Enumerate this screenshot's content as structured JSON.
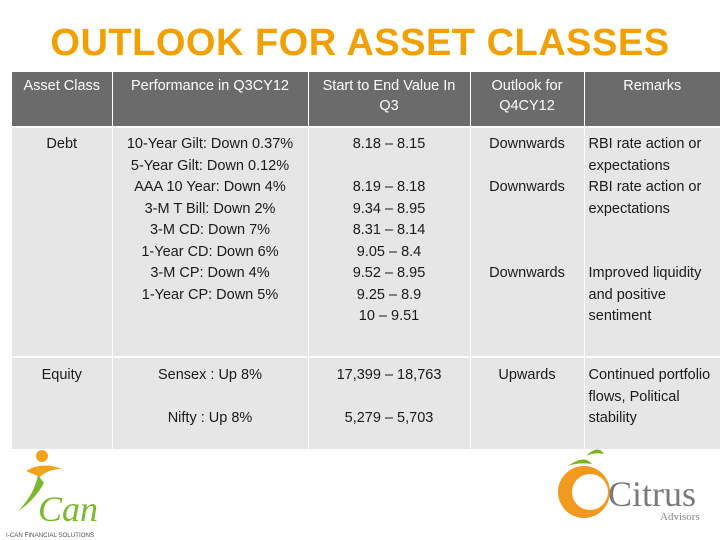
{
  "title": "OUTLOOK FOR ASSET CLASSES",
  "table": {
    "headers": [
      "Asset Class",
      "Performance in Q3CY12",
      "Start to End Value In Q3",
      "Outlook for Q4CY12",
      "Remarks"
    ],
    "debt": {
      "asset_class": "Debt",
      "performance": [
        "10-Year Gilt: Down 0.37%",
        "5-Year Gilt: Down 0.12%",
        "AAA 10 Year: Down 4%",
        "3-M T Bill: Down 2%",
        "3-M CD: Down 7%",
        "1-Year CD: Down 6%",
        "3-M CP: Down 4%",
        "1-Year CP: Down 5%"
      ],
      "values": [
        "8.18 – 8.15",
        "8.19 – 8.18",
        "9.34 – 8.95",
        "8.31 – 8.14",
        "9.05 – 8.4",
        "9.52 – 8.95",
        "9.25 – 8.9",
        "10 – 9.51"
      ],
      "outlook": [
        "Downwards",
        "Downwards",
        "Downwards"
      ],
      "remarks": [
        "RBI rate action or expectations",
        "RBI rate action or expectations",
        "Improved liquidity and positive sentiment"
      ]
    },
    "equity": {
      "asset_class": "Equity",
      "performance": [
        "Sensex : Up 8%",
        "Nifty : Up 8%"
      ],
      "values": [
        "17,399 – 18,763",
        "5,279 – 5,703"
      ],
      "outlook": "Upwards",
      "remarks": "Continued portfolio flows, Political stability"
    }
  },
  "logos": {
    "ican": {
      "text": "Can",
      "tagline": "I-CAN FINANCIAL SOLUTIONS"
    },
    "citrus": {
      "text": "Citrus",
      "sub": "Advisors"
    }
  },
  "colors": {
    "title": "#f0a000",
    "header_bg": "#6b6b6b",
    "cell_bg": "#e6e6e6",
    "citrus_green": "#7fb21c",
    "citrus_orange": "#f29a1f"
  }
}
